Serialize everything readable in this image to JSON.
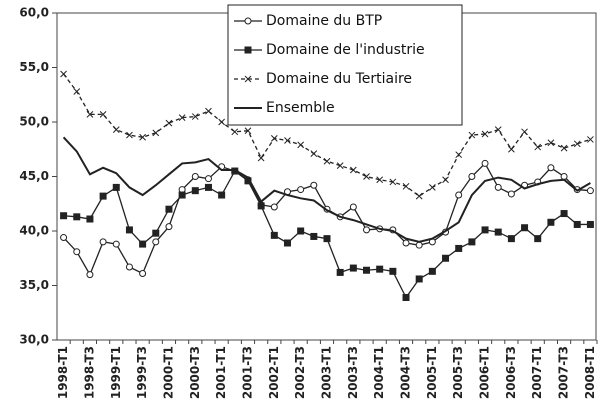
{
  "chart_data": {
    "type": "line",
    "categories": [
      "1998-T1",
      null,
      "1998-T3",
      null,
      "1999-T1",
      null,
      "1999-T3",
      null,
      "2000-T1",
      null,
      "2000-T3",
      null,
      "2001-T1",
      null,
      "2001-T3",
      null,
      "2002-T1",
      null,
      "2002-T3",
      null,
      "2003-T1",
      null,
      "2003-T3",
      null,
      "2004-T1",
      null,
      "2004-T3",
      null,
      "2005-T1",
      null,
      "2005-T3",
      null,
      "2006-T1",
      null,
      "2006-T3",
      null,
      "2007-T1",
      null,
      "2007-T3",
      null,
      "2008-T1"
    ],
    "series": [
      {
        "name": "Domaine du BTP",
        "color": "#222222",
        "marker": "circle",
        "dash": false,
        "values": [
          39.4,
          38.1,
          36.0,
          39.0,
          38.8,
          36.7,
          36.1,
          39.0,
          40.4,
          43.8,
          45.0,
          44.8,
          45.9,
          45.5,
          44.7,
          42.4,
          42.2,
          43.6,
          43.8,
          44.2,
          42.0,
          41.3,
          42.2,
          40.1,
          40.2,
          40.1,
          38.9,
          38.7,
          39.0,
          39.9,
          43.3,
          45.0,
          46.2,
          44.0,
          43.4,
          44.2,
          44.5,
          45.8,
          45.0,
          43.8,
          43.7
        ]
      },
      {
        "name": "Domaine de l'industrie",
        "color": "#222222",
        "marker": "square",
        "dash": false,
        "values": [
          41.4,
          41.3,
          41.1,
          43.2,
          44.0,
          40.1,
          38.8,
          39.8,
          42.0,
          43.3,
          43.7,
          44.0,
          43.3,
          45.5,
          44.6,
          42.3,
          39.6,
          38.9,
          40.0,
          39.5,
          39.3,
          36.2,
          36.6,
          36.4,
          36.5,
          36.3,
          33.9,
          35.6,
          36.3,
          37.5,
          38.4,
          39.0,
          40.1,
          39.9,
          39.3,
          40.3,
          39.3,
          40.8,
          41.6,
          40.6,
          40.6
        ]
      },
      {
        "name": "Domaine du Tertiaire",
        "color": "#222222",
        "marker": "x",
        "dash": true,
        "values": [
          54.4,
          52.8,
          50.7,
          50.7,
          49.3,
          48.8,
          48.6,
          49.0,
          49.9,
          50.4,
          50.5,
          51.0,
          50.0,
          49.1,
          49.2,
          46.7,
          48.5,
          48.3,
          47.9,
          47.1,
          46.4,
          46.0,
          45.6,
          45.0,
          44.7,
          44.5,
          44.1,
          43.2,
          44.0,
          44.7,
          47.0,
          48.8,
          48.9,
          49.3,
          47.5,
          49.1,
          47.7,
          48.1,
          47.6,
          48.0,
          48.4
        ]
      },
      {
        "name": "Ensemble",
        "color": "#222222",
        "marker": "none",
        "dash": false,
        "values": [
          48.6,
          47.3,
          45.2,
          45.8,
          45.3,
          44.0,
          43.3,
          44.2,
          45.2,
          46.2,
          46.3,
          46.6,
          45.6,
          45.6,
          44.9,
          42.7,
          43.7,
          43.3,
          43.0,
          42.8,
          41.9,
          41.3,
          41.0,
          40.6,
          40.2,
          40.0,
          39.3,
          39.0,
          39.3,
          40.0,
          40.8,
          43.3,
          44.6,
          44.9,
          44.7,
          43.9,
          44.3,
          44.6,
          44.7,
          43.7,
          44.4
        ]
      }
    ],
    "ylim": [
      30,
      60
    ],
    "yticks": [
      {
        "value": 30,
        "label": "30,0"
      },
      {
        "value": 35,
        "label": "35,0"
      },
      {
        "value": 40,
        "label": "40,0"
      },
      {
        "value": 45,
        "label": "45,0"
      },
      {
        "value": 50,
        "label": "50,0"
      },
      {
        "value": 55,
        "label": "55,0"
      },
      {
        "value": 60,
        "label": "60,0"
      }
    ],
    "grid": false,
    "legend": "top"
  }
}
